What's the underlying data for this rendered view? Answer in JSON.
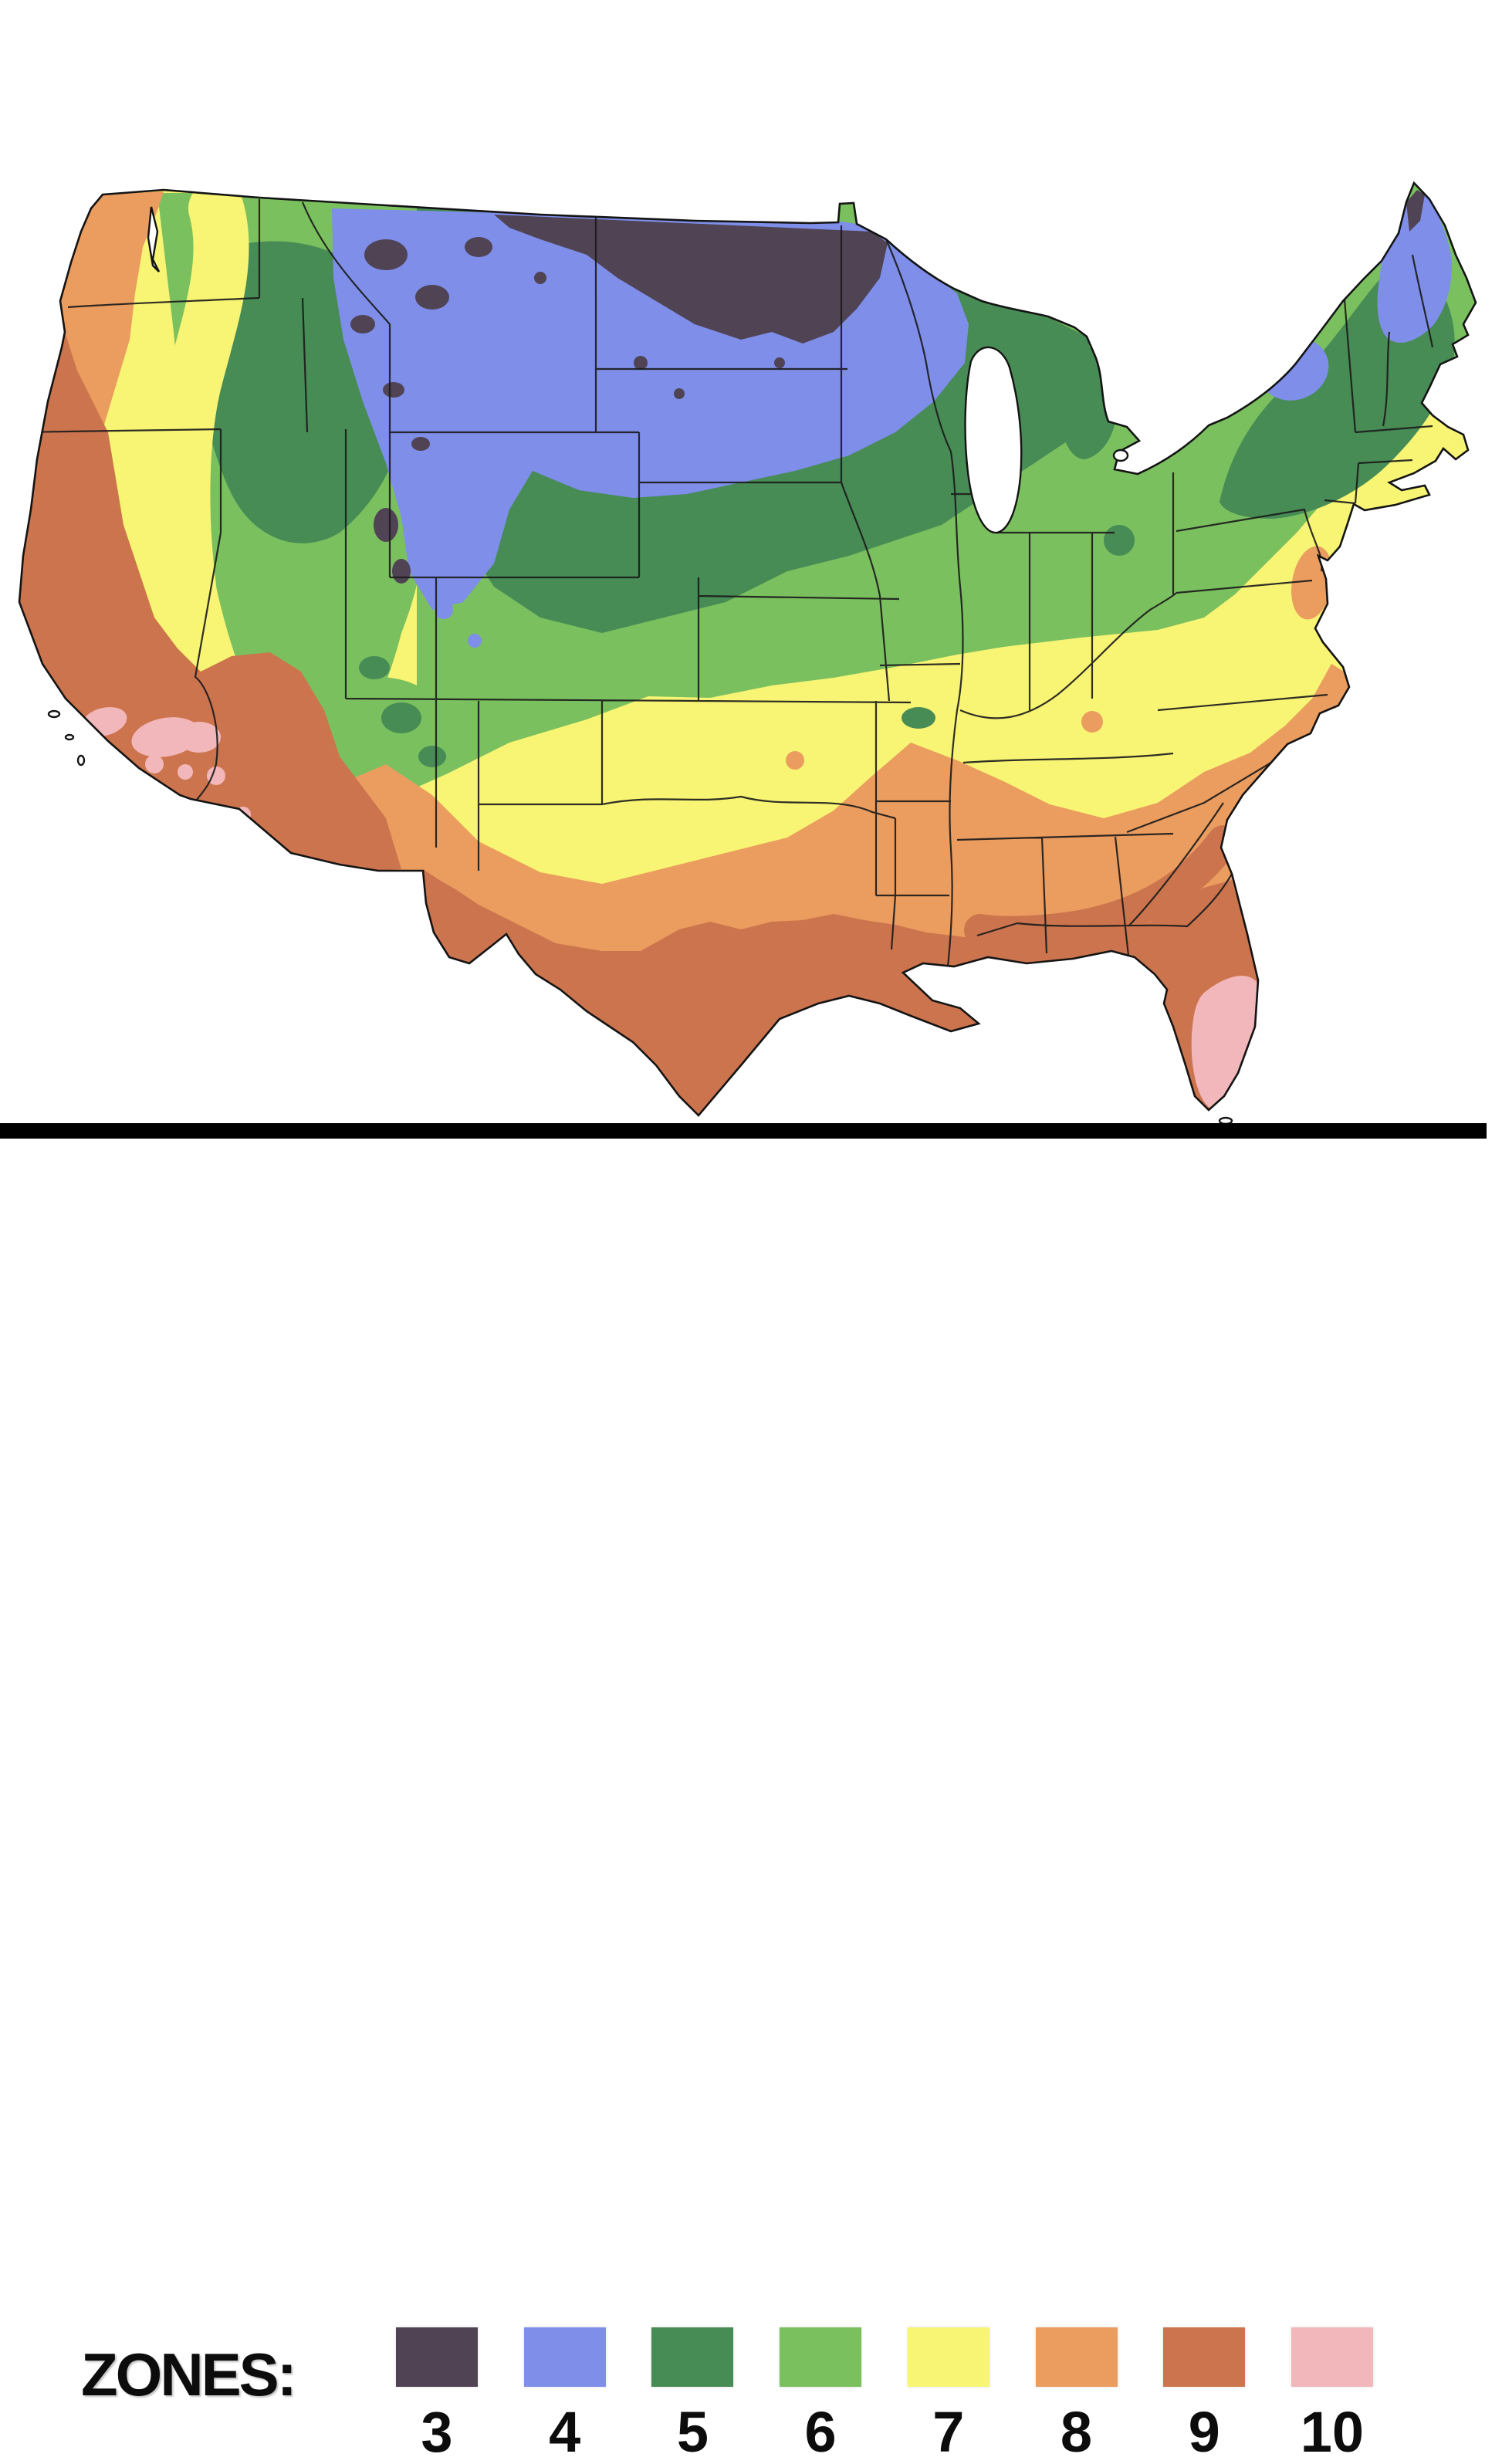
{
  "map": {
    "description": "United States plant hardiness zone map",
    "outline_color": "#141414",
    "state_border_color": "#1c1c1c",
    "water_color": "#ffffff"
  },
  "divider": {
    "color": "#000000"
  },
  "legend": {
    "label": "ZONES:",
    "zones": [
      {
        "number": "3",
        "color": "#4f4354"
      },
      {
        "number": "4",
        "color": "#7e8ee9"
      },
      {
        "number": "5",
        "color": "#478b55"
      },
      {
        "number": "6",
        "color": "#7ac05f"
      },
      {
        "number": "7",
        "color": "#f8f474"
      },
      {
        "number": "8",
        "color": "#eb9c5f"
      },
      {
        "number": "9",
        "color": "#cc744d"
      },
      {
        "number": "10",
        "color": "#f2b7ba"
      }
    ]
  }
}
